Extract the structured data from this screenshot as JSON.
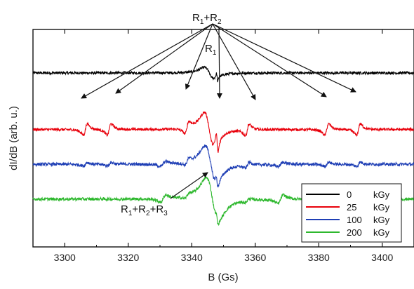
{
  "chart_data": {
    "type": "line",
    "title": "",
    "xlabel": "B (Gs)",
    "ylabel": "dI/dB (arb. u.)",
    "xlim": [
      3290,
      3410
    ],
    "x_ticks": [
      3300,
      3320,
      3340,
      3360,
      3380,
      3400
    ],
    "y_ticks": "none",
    "grid": false,
    "legend": {
      "placement": "bottom-right",
      "entries": [
        {
          "value": "0",
          "unit": "kGy",
          "color": "#000000"
        },
        {
          "value": "25",
          "unit": "kGy",
          "color": "#e8000b"
        },
        {
          "value": "100",
          "unit": "kGy",
          "color": "#1f3fb5"
        },
        {
          "value": "200",
          "unit": "kGy",
          "color": "#2eb82e"
        }
      ]
    },
    "series": [
      {
        "dose": "0 kGy",
        "color": "#000000",
        "offset": 0.8,
        "noise": 0.006,
        "components": [
          {
            "center": 3345.5,
            "width": 2.6,
            "amp": -0.04
          },
          {
            "center": 3348.0,
            "width": 0.35,
            "amp": -0.03
          }
        ]
      },
      {
        "dose": "25 kGy",
        "color": "#e8000b",
        "offset": 0.54,
        "noise": 0.006,
        "components": [
          {
            "center": 3345.5,
            "width": 2.6,
            "amp": -0.12
          },
          {
            "center": 3348.0,
            "width": 0.5,
            "amp": -0.075
          },
          {
            "center": 3306.5,
            "width": 1.1,
            "amp": 0.04
          },
          {
            "center": 3314.0,
            "width": 1.1,
            "amp": 0.04
          },
          {
            "center": 3338.5,
            "width": 1.1,
            "amp": 0.04
          },
          {
            "center": 3357.5,
            "width": 1.1,
            "amp": 0.04
          },
          {
            "center": 3382.5,
            "width": 1.1,
            "amp": 0.04
          },
          {
            "center": 3392.5,
            "width": 1.1,
            "amp": 0.04
          }
        ]
      },
      {
        "dose": "100 kGy",
        "color": "#1f3fb5",
        "offset": 0.38,
        "noise": 0.007,
        "components": [
          {
            "center": 3346.0,
            "width": 3.0,
            "amp": -0.13
          },
          {
            "center": 3348.0,
            "width": 0.5,
            "amp": -0.04
          },
          {
            "center": 3306.5,
            "width": 1.1,
            "amp": 0.012
          },
          {
            "center": 3314.0,
            "width": 1.1,
            "amp": 0.012
          },
          {
            "center": 3331.0,
            "width": 1.5,
            "amp": 0.018
          },
          {
            "center": 3338.5,
            "width": 1.1,
            "amp": 0.02
          },
          {
            "center": 3357.5,
            "width": 1.1,
            "amp": 0.02
          },
          {
            "center": 3368.0,
            "width": 1.5,
            "amp": 0.015
          },
          {
            "center": 3382.5,
            "width": 1.1,
            "amp": 0.015
          },
          {
            "center": 3392.5,
            "width": 1.1,
            "amp": 0.015
          }
        ]
      },
      {
        "dose": "200 kGy",
        "color": "#2eb82e",
        "offset": 0.22,
        "noise": 0.007,
        "components": [
          {
            "center": 3346.5,
            "width": 3.3,
            "amp": -0.15
          },
          {
            "center": 3348.0,
            "width": 0.5,
            "amp": -0.03
          },
          {
            "center": 3331.0,
            "width": 1.5,
            "amp": 0.025
          },
          {
            "center": 3338.5,
            "width": 1.2,
            "amp": 0.015
          },
          {
            "center": 3357.5,
            "width": 1.2,
            "amp": 0.012
          },
          {
            "center": 3368.0,
            "width": 1.5,
            "amp": 0.03
          }
        ]
      }
    ],
    "annotations": [
      {
        "id": "r1r2",
        "label": "R1+R2",
        "parts": [
          "R",
          "1",
          "+R",
          "2"
        ]
      },
      {
        "id": "r1",
        "label": "R1",
        "parts": [
          "R",
          "1"
        ]
      },
      {
        "id": "r1r2r3",
        "label": "R1+R2+R3",
        "parts": [
          "R",
          "1",
          "+R",
          "2",
          "+R",
          "3"
        ]
      }
    ]
  }
}
